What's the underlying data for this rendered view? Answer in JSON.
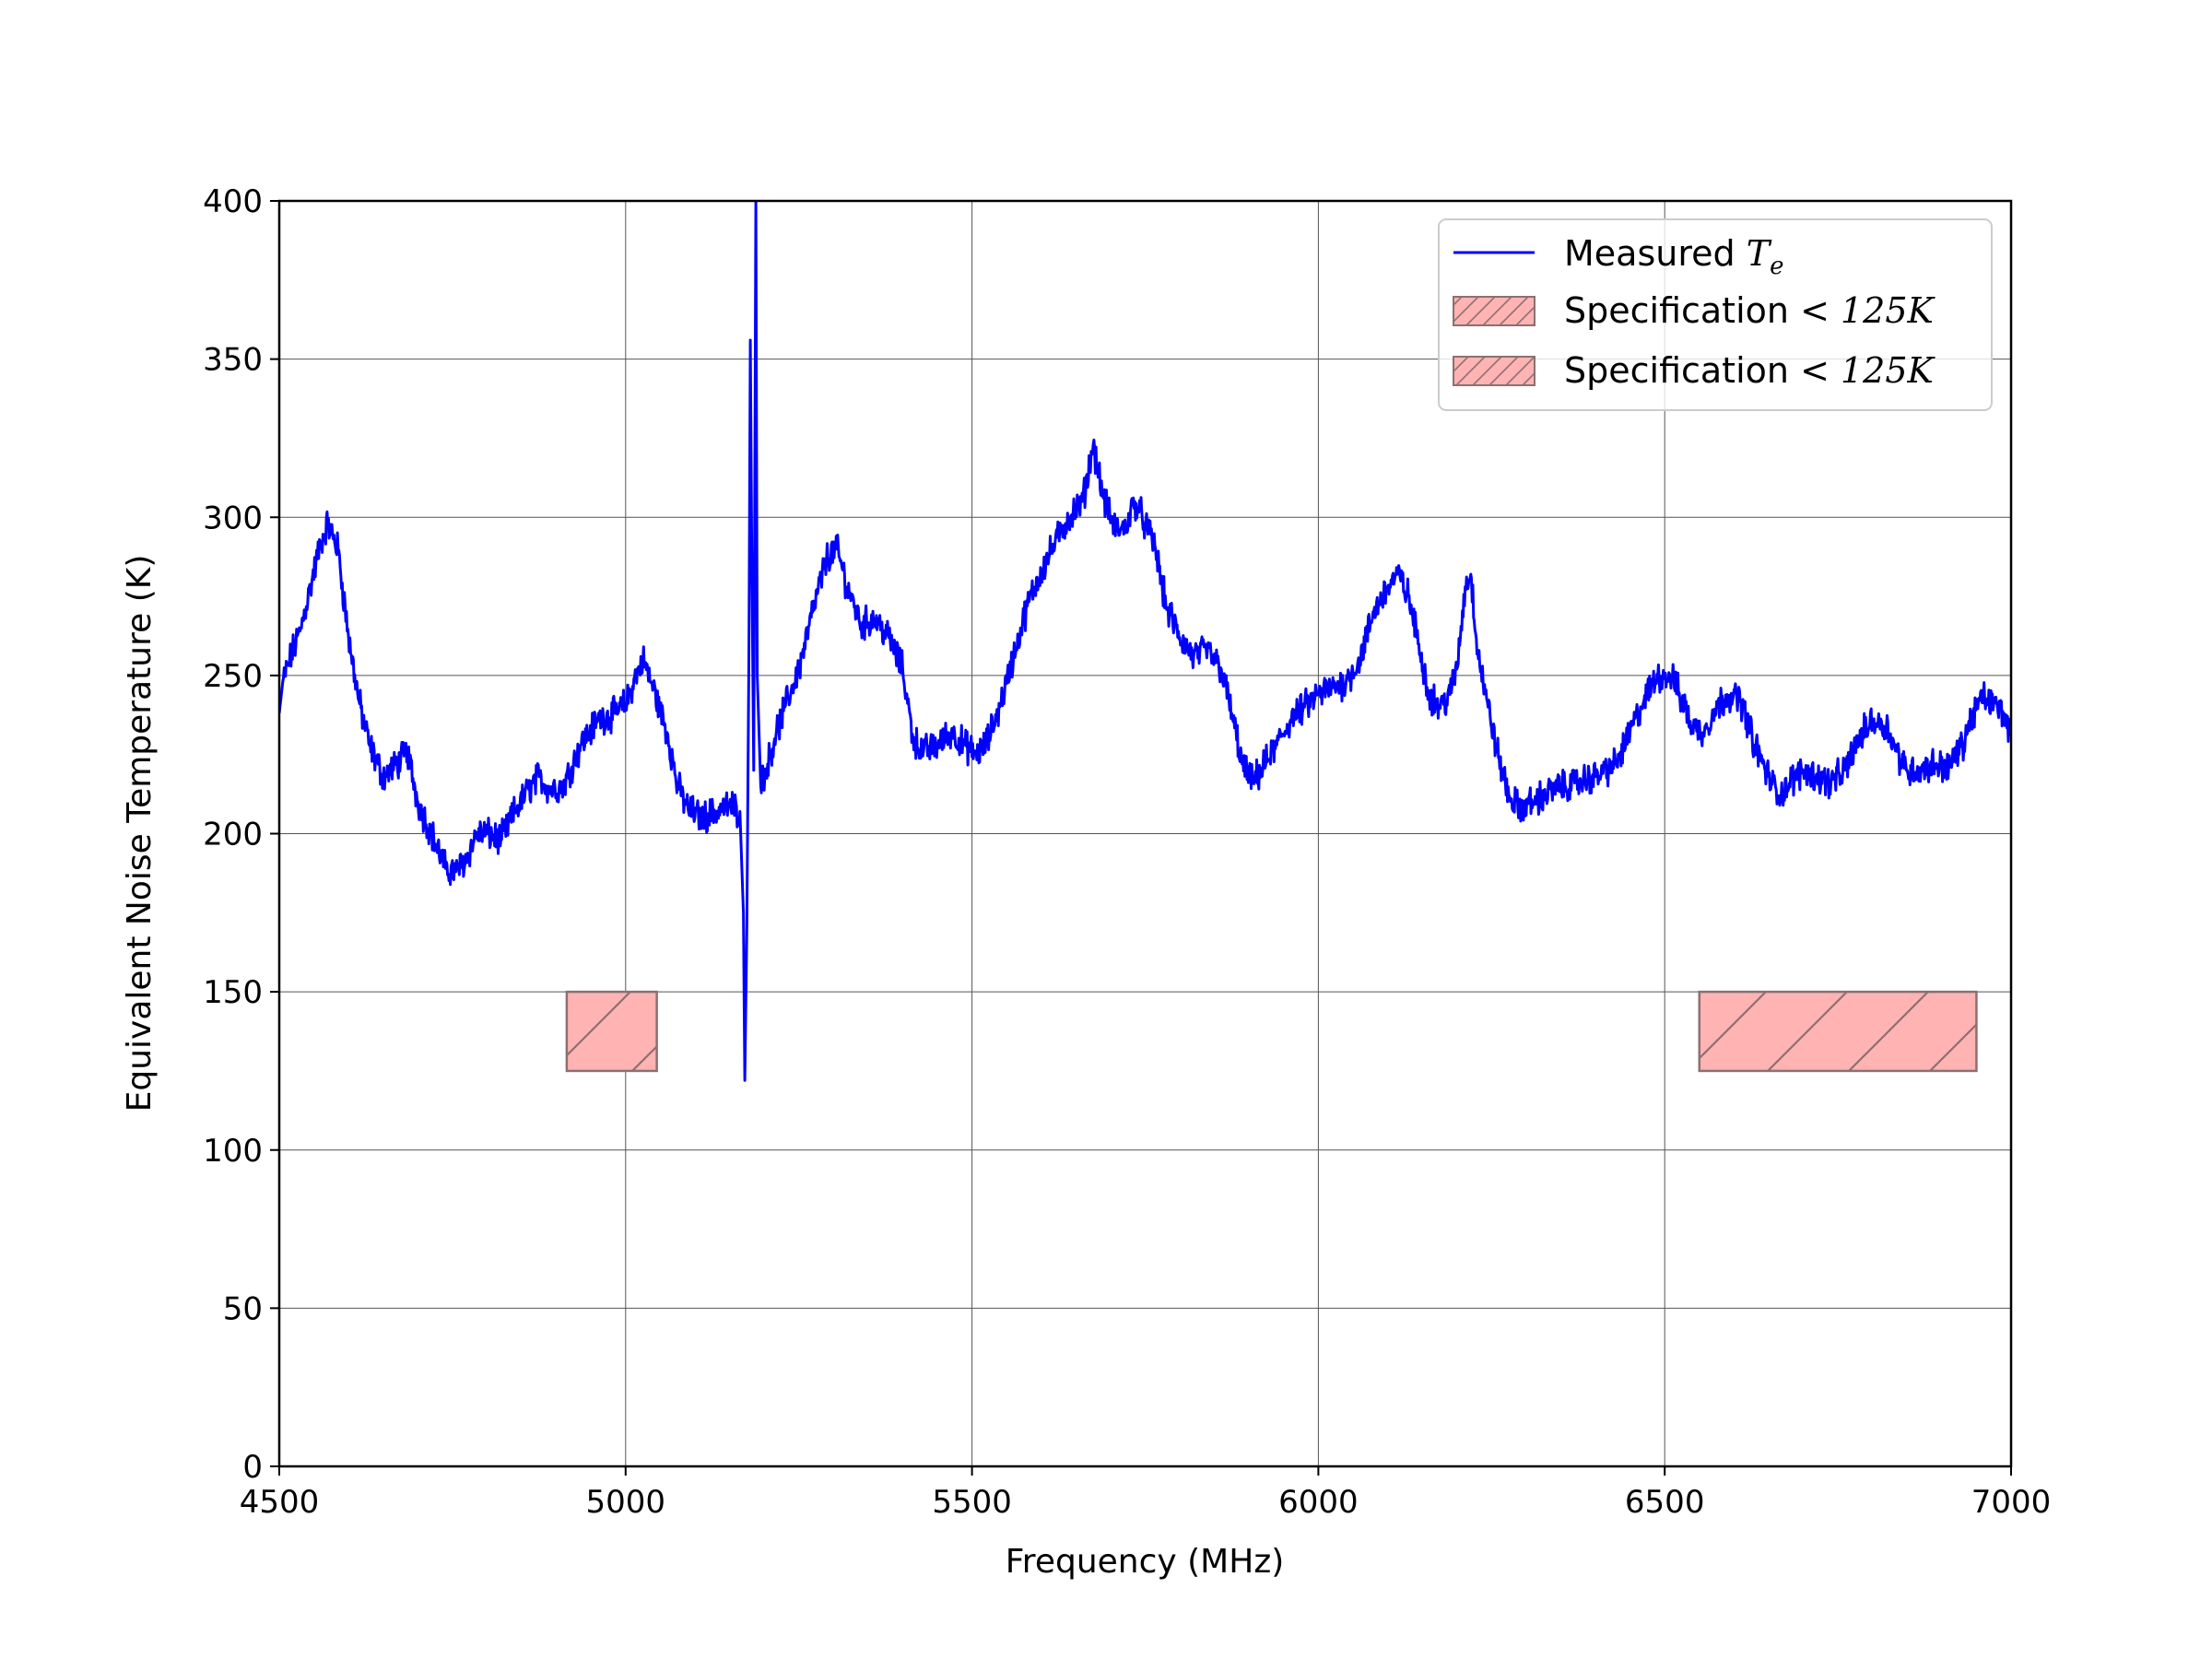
{
  "chart_data": {
    "type": "line",
    "title": "",
    "xlabel": "Frequency (MHz)",
    "ylabel": "Equivalent Noise Temperature (K)",
    "xlim": [
      4500,
      7000
    ],
    "ylim": [
      0,
      400
    ],
    "x_ticks": [
      4500,
      5000,
      5500,
      6000,
      6500,
      7000
    ],
    "y_ticks": [
      0,
      50,
      100,
      150,
      200,
      250,
      300,
      350,
      400
    ],
    "grid": true,
    "legend_position": "upper-right",
    "series": [
      {
        "name": "Measured T_e",
        "legend_text": "Measured ",
        "legend_symbol": "T",
        "legend_subscript": "e",
        "color": "#0000ff",
        "noise_amplitude": 4,
        "points": [
          [
            4500,
            238
          ],
          [
            4505,
            248
          ],
          [
            4515,
            255
          ],
          [
            4530,
            264
          ],
          [
            4545,
            278
          ],
          [
            4560,
            292
          ],
          [
            4570,
            298
          ],
          [
            4585,
            290
          ],
          [
            4600,
            262
          ],
          [
            4615,
            242
          ],
          [
            4630,
            228
          ],
          [
            4650,
            218
          ],
          [
            4670,
            222
          ],
          [
            4685,
            226
          ],
          [
            4700,
            210
          ],
          [
            4720,
            200
          ],
          [
            4740,
            189
          ],
          [
            4755,
            188
          ],
          [
            4770,
            192
          ],
          [
            4785,
            200
          ],
          [
            4800,
            200
          ],
          [
            4820,
            198
          ],
          [
            4840,
            207
          ],
          [
            4860,
            214
          ],
          [
            4875,
            218
          ],
          [
            4890,
            214
          ],
          [
            4910,
            215
          ],
          [
            4935,
            228
          ],
          [
            4960,
            236
          ],
          [
            4985,
            238
          ],
          [
            5000,
            241
          ],
          [
            5015,
            250
          ],
          [
            5025,
            255
          ],
          [
            5040,
            246
          ],
          [
            5060,
            232
          ],
          [
            5075,
            215
          ],
          [
            5090,
            208
          ],
          [
            5110,
            205
          ],
          [
            5130,
            207
          ],
          [
            5150,
            209
          ],
          [
            5165,
            207
          ],
          [
            5170,
            175
          ],
          [
            5172,
            122
          ],
          [
            5175,
            170
          ],
          [
            5178,
            258
          ],
          [
            5180,
            356
          ],
          [
            5182,
            290
          ],
          [
            5185,
            220
          ],
          [
            5188,
            400
          ],
          [
            5190,
            250
          ],
          [
            5195,
            215
          ],
          [
            5205,
            222
          ],
          [
            5215,
            230
          ],
          [
            5230,
            240
          ],
          [
            5250,
            252
          ],
          [
            5270,
            270
          ],
          [
            5290,
            287
          ],
          [
            5305,
            290
          ],
          [
            5320,
            278
          ],
          [
            5340,
            266
          ],
          [
            5360,
            268
          ],
          [
            5380,
            262
          ],
          [
            5400,
            252
          ],
          [
            5415,
            230
          ],
          [
            5430,
            226
          ],
          [
            5450,
            228
          ],
          [
            5470,
            232
          ],
          [
            5490,
            228
          ],
          [
            5505,
            225
          ],
          [
            5520,
            228
          ],
          [
            5540,
            240
          ],
          [
            5560,
            256
          ],
          [
            5580,
            272
          ],
          [
            5600,
            283
          ],
          [
            5620,
            292
          ],
          [
            5640,
            300
          ],
          [
            5660,
            305
          ],
          [
            5675,
            323
          ],
          [
            5690,
            306
          ],
          [
            5705,
            297
          ],
          [
            5720,
            296
          ],
          [
            5735,
            305
          ],
          [
            5750,
            298
          ],
          [
            5765,
            290
          ],
          [
            5780,
            272
          ],
          [
            5800,
            262
          ],
          [
            5820,
            256
          ],
          [
            5840,
            258
          ],
          [
            5860,
            252
          ],
          [
            5875,
            238
          ],
          [
            5890,
            222
          ],
          [
            5905,
            216
          ],
          [
            5920,
            221
          ],
          [
            5940,
            228
          ],
          [
            5960,
            236
          ],
          [
            5980,
            240
          ],
          [
            6000,
            244
          ],
          [
            6020,
            246
          ],
          [
            6040,
            248
          ],
          [
            6060,
            255
          ],
          [
            6080,
            270
          ],
          [
            6100,
            278
          ],
          [
            6115,
            282
          ],
          [
            6130,
            275
          ],
          [
            6145,
            260
          ],
          [
            6160,
            244
          ],
          [
            6175,
            240
          ],
          [
            6190,
            244
          ],
          [
            6200,
            252
          ],
          [
            6212,
            278
          ],
          [
            6220,
            282
          ],
          [
            6230,
            258
          ],
          [
            6245,
            240
          ],
          [
            6260,
            224
          ],
          [
            6275,
            212
          ],
          [
            6290,
            208
          ],
          [
            6310,
            210
          ],
          [
            6340,
            214
          ],
          [
            6370,
            216
          ],
          [
            6400,
            218
          ],
          [
            6430,
            222
          ],
          [
            6450,
            232
          ],
          [
            6470,
            242
          ],
          [
            6490,
            250
          ],
          [
            6510,
            250
          ],
          [
            6525,
            242
          ],
          [
            6540,
            234
          ],
          [
            6555,
            232
          ],
          [
            6570,
            238
          ],
          [
            6590,
            244
          ],
          [
            6610,
            242
          ],
          [
            6630,
            228
          ],
          [
            6650,
            218
          ],
          [
            6665,
            212
          ],
          [
            6680,
            216
          ],
          [
            6700,
            220
          ],
          [
            6720,
            218
          ],
          [
            6740,
            216
          ],
          [
            6760,
            220
          ],
          [
            6780,
            230
          ],
          [
            6800,
            236
          ],
          [
            6820,
            234
          ],
          [
            6835,
            226
          ],
          [
            6850,
            220
          ],
          [
            6870,
            220
          ],
          [
            6890,
            222
          ],
          [
            6910,
            221
          ],
          [
            6930,
            228
          ],
          [
            6945,
            238
          ],
          [
            6960,
            243
          ],
          [
            6975,
            241
          ],
          [
            6990,
            238
          ],
          [
            7000,
            231
          ]
        ]
      }
    ],
    "specification_bands": [
      {
        "name": "Specification <125K",
        "legend_text": "Specification ",
        "legend_math": "< 125K",
        "x_range": [
          4915,
          5045
        ],
        "y_range": [
          125,
          150
        ],
        "fill": "#ffb3b3",
        "hatch": "/"
      },
      {
        "name": "Specification <125K",
        "legend_text": "Specification ",
        "legend_math": "< 125K",
        "x_range": [
          6550,
          6950
        ],
        "y_range": [
          125,
          150
        ],
        "fill": "#ffb3b3",
        "hatch": "/"
      }
    ]
  }
}
